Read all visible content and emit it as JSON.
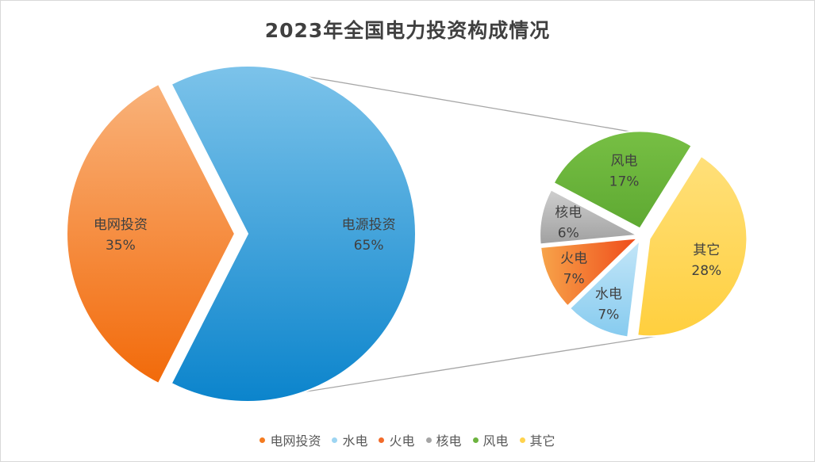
{
  "chart_data": {
    "type": "pie-of-pie",
    "title": "2023年全国电力投资构成情况",
    "main_pie": {
      "slices": [
        {
          "name": "电网投资",
          "value": 35,
          "label": "35%",
          "color": "#F47B20"
        },
        {
          "name": "电源投资",
          "value": 65,
          "label": "65%",
          "color": "#2E9BD6"
        }
      ]
    },
    "secondary_pie": {
      "parent": "电源投资",
      "slices": [
        {
          "name": "其它",
          "value": 28,
          "label": "28%",
          "color": "#FFD34E"
        },
        {
          "name": "水电",
          "value": 7,
          "label": "7%",
          "color": "#9DD5F2"
        },
        {
          "name": "火电",
          "value": 7,
          "label": "7%",
          "color": "#F26B2A"
        },
        {
          "name": "核电",
          "value": 6,
          "label": "6%",
          "color": "#A5A5A5"
        },
        {
          "name": "风电",
          "value": 17,
          "label": "17%",
          "color": "#6DB33F"
        }
      ]
    },
    "legend": {
      "position": "bottom",
      "items": [
        {
          "name": "电网投资",
          "color": "#F47B20"
        },
        {
          "name": "水电",
          "color": "#9DD5F2"
        },
        {
          "name": "火电",
          "color": "#F26B2A"
        },
        {
          "name": "核电",
          "color": "#A5A5A5"
        },
        {
          "name": "风电",
          "color": "#6DB33F"
        },
        {
          "name": "其它",
          "color": "#FFD34E"
        }
      ]
    }
  }
}
